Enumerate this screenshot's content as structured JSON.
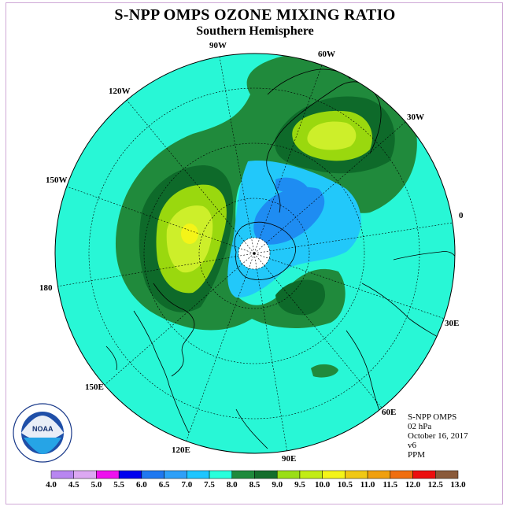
{
  "title": "S-NPP OMPS OZONE MIXING RATIO",
  "subtitle": "Southern Hemisphere",
  "longitude_labels": {
    "lon_90w": "90W",
    "lon_60w": "60W",
    "lon_30w": "30W",
    "lon_0": "0",
    "lon_30e": "30E",
    "lon_60e": "60E",
    "lon_90e": "90E",
    "lon_120e": "120E",
    "lon_150e": "150E",
    "lon_180": "180",
    "lon_150w": "150W",
    "lon_120w": "120W"
  },
  "info": {
    "instrument": "S-NPP OMPS",
    "level": "02 hPa",
    "date": "October 16, 2017",
    "version": "v6",
    "units": "PPM"
  },
  "logo": {
    "text": "NOAA",
    "ring_text": "NATIONAL OCEANIC AND ATMOSPHERIC ADMINISTRATION · U.S. DEPARTMENT OF COMMERCE"
  },
  "colorbar": {
    "ticks": [
      "4.0",
      "4.5",
      "5.0",
      "5.5",
      "6.0",
      "6.5",
      "7.0",
      "7.5",
      "8.0",
      "8.5",
      "9.0",
      "9.5",
      "10.0",
      "10.5",
      "11.0",
      "11.5",
      "12.0",
      "12.5",
      "13.0"
    ],
    "colors": [
      "#b886f0",
      "#dca8f2",
      "#ee10ee",
      "#0000ee",
      "#1f78f0",
      "#2ea0f8",
      "#1ec6ff",
      "#28ffdc",
      "#1f8a3c",
      "#146e2c",
      "#9ade16",
      "#c2ec16",
      "#f4f418",
      "#f0c814",
      "#f0a00e",
      "#f06e10",
      "#ec0e0e",
      "#8a5a3a"
    ]
  },
  "map_colors": {
    "ocean_bg": "#28f7d6",
    "dark_green": "#208a3c",
    "darker_green": "#0e6a2a",
    "lime": "#9ad80e",
    "yellow_green": "#cdef2a",
    "yellow": "#f4f418",
    "light_blue": "#22c8fa",
    "blue": "#1e8cf2"
  }
}
